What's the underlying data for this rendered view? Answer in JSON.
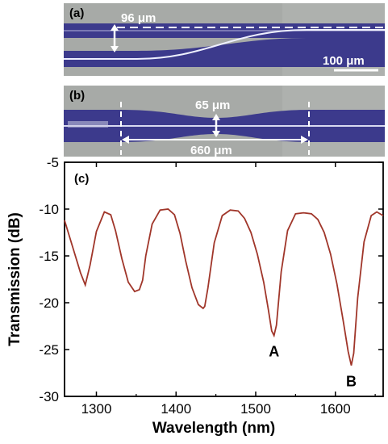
{
  "panels": {
    "a": {
      "label": "(a)",
      "separation_label": "96 μm",
      "scale_bar_label": "100 μm"
    },
    "b": {
      "label": "(b)",
      "gap_label": "65 μm",
      "length_label": "660 μm"
    }
  },
  "colors": {
    "micrograph_background": "#a7aaa7",
    "waveguide_fill": "#3c3a8c",
    "waveguide_core": "#eef0ff",
    "trace": "#a0362a",
    "annotation": "#ffffff"
  },
  "chart_data": {
    "type": "line",
    "panel_label": "(c)",
    "xlabel": "Wavelength (nm)",
    "ylabel": "Transmission (dB)",
    "xlim": [
      1260,
      1660
    ],
    "ylim": [
      -30,
      -5
    ],
    "xticks": [
      1300,
      1400,
      1500,
      1600
    ],
    "yticks": [
      -5,
      -10,
      -15,
      -20,
      -25,
      -30
    ],
    "grid": false,
    "series": [
      {
        "x": [
          1260,
          1270,
          1280,
          1286,
          1292,
          1300,
          1310,
          1318,
          1324,
          1332,
          1340,
          1348,
          1354,
          1358,
          1362,
          1370,
          1380,
          1390,
          1398,
          1405,
          1412,
          1420,
          1428,
          1434,
          1436,
          1440,
          1448,
          1458,
          1468,
          1478,
          1486,
          1494,
          1502,
          1510,
          1516,
          1520,
          1523,
          1526,
          1532,
          1540,
          1550,
          1560,
          1570,
          1578,
          1586,
          1594,
          1602,
          1610,
          1616,
          1620,
          1623,
          1628,
          1636,
          1645,
          1652,
          1660
        ],
        "y": [
          -11.2,
          -14.0,
          -16.8,
          -18.1,
          -16.0,
          -12.4,
          -10.3,
          -10.6,
          -12.3,
          -15.3,
          -17.8,
          -18.8,
          -18.6,
          -17.6,
          -15.0,
          -11.6,
          -10.1,
          -10.0,
          -10.6,
          -12.6,
          -15.5,
          -18.4,
          -20.2,
          -20.6,
          -20.4,
          -18.4,
          -13.6,
          -10.7,
          -10.1,
          -10.2,
          -11.0,
          -12.5,
          -14.8,
          -17.8,
          -20.8,
          -23.0,
          -23.5,
          -22.4,
          -16.7,
          -12.3,
          -10.5,
          -10.4,
          -10.5,
          -11.1,
          -12.5,
          -14.8,
          -18.0,
          -22.0,
          -25.2,
          -26.7,
          -25.4,
          -19.5,
          -13.5,
          -10.7,
          -10.3,
          -10.7
        ]
      }
    ],
    "annotations": [
      {
        "text": "A",
        "x": 1523,
        "y": -23.5
      },
      {
        "text": "B",
        "x": 1620,
        "y": -26.7
      }
    ]
  }
}
